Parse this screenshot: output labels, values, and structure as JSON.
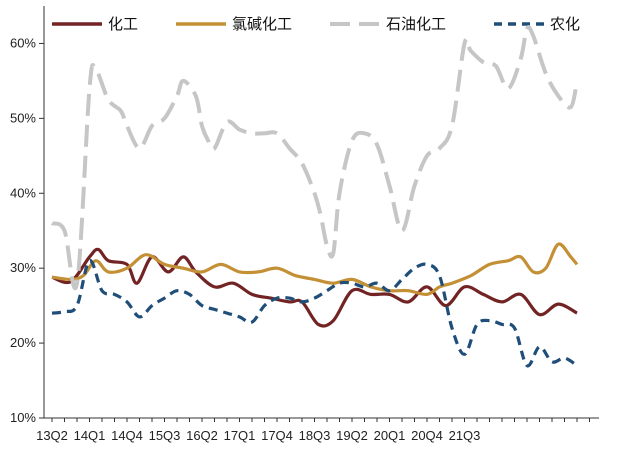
{
  "chart_data": {
    "type": "line",
    "title": "",
    "xlabel": "",
    "ylabel": "",
    "ylim": [
      10,
      65
    ],
    "yticks": [
      10,
      20,
      30,
      40,
      50,
      60
    ],
    "yticks_labels": [
      "10%",
      "20%",
      "30%",
      "40%",
      "50%",
      "60%"
    ],
    "x_start_quarter": "13Q2",
    "xtick_labels": [
      "13Q2",
      "14Q1",
      "14Q4",
      "15Q3",
      "16Q2",
      "17Q1",
      "17Q4",
      "18Q3",
      "19Q2",
      "20Q1",
      "20Q4",
      "21Q3"
    ],
    "grid": false,
    "legend_position": "top",
    "series": [
      {
        "name": "化工",
        "color": "#722424",
        "style": "solid",
        "points": [
          [
            0,
            28.8
          ],
          [
            1.5,
            28.2
          ],
          [
            3,
            31.5
          ],
          [
            3.7,
            32.5
          ],
          [
            4.5,
            31
          ],
          [
            6,
            30.5
          ],
          [
            6.8,
            28
          ],
          [
            8,
            31.5
          ],
          [
            9.3,
            29.5
          ],
          [
            10.5,
            31.5
          ],
          [
            11.5,
            29.5
          ],
          [
            13,
            27.5
          ],
          [
            14.5,
            28
          ],
          [
            16,
            26.5
          ],
          [
            17.5,
            26
          ],
          [
            19,
            25.5
          ],
          [
            20,
            25.5
          ],
          [
            21.3,
            22.5
          ],
          [
            22.5,
            23
          ],
          [
            24,
            27
          ],
          [
            25.5,
            26.5
          ],
          [
            27,
            26.5
          ],
          [
            28.5,
            25.5
          ],
          [
            30,
            27.5
          ],
          [
            31.5,
            25
          ],
          [
            33,
            27.5
          ],
          [
            34.5,
            26.5
          ],
          [
            36,
            25.5
          ],
          [
            37.5,
            26.5
          ],
          [
            39,
            23.8
          ],
          [
            40.5,
            25.2
          ],
          [
            42,
            24
          ]
        ]
      },
      {
        "name": "氯碱化工",
        "color": "#C49035",
        "style": "solid",
        "points": [
          [
            0,
            28.8
          ],
          [
            1.5,
            28.5
          ],
          [
            2.5,
            29
          ],
          [
            3.5,
            31
          ],
          [
            4.5,
            29.5
          ],
          [
            6,
            30
          ],
          [
            7.5,
            31.8
          ],
          [
            9,
            30.5
          ],
          [
            10.5,
            30
          ],
          [
            12,
            29.5
          ],
          [
            13.5,
            30.5
          ],
          [
            15,
            29.5
          ],
          [
            16.5,
            29.5
          ],
          [
            18,
            30
          ],
          [
            19.5,
            29
          ],
          [
            21,
            28.5
          ],
          [
            22.5,
            28
          ],
          [
            24,
            28.5
          ],
          [
            25.5,
            27.5
          ],
          [
            27,
            27
          ],
          [
            28.5,
            27
          ],
          [
            30,
            26.5
          ],
          [
            31,
            27.5
          ],
          [
            32,
            28
          ],
          [
            33.5,
            29
          ],
          [
            35,
            30.5
          ],
          [
            36.5,
            31
          ],
          [
            37.5,
            31.5
          ],
          [
            38.5,
            29.5
          ],
          [
            39.5,
            30
          ],
          [
            40.5,
            33.2
          ],
          [
            41.5,
            31.5
          ],
          [
            42,
            30.5
          ]
        ]
      },
      {
        "name": "石油化工",
        "color": "#C6C6C6",
        "style": "dashed",
        "points": [
          [
            0,
            36
          ],
          [
            1,
            35
          ],
          [
            2,
            28
          ],
          [
            3,
            54
          ],
          [
            3.5,
            56.5
          ],
          [
            4.5,
            52.5
          ],
          [
            5.5,
            51
          ],
          [
            6,
            49
          ],
          [
            7,
            46
          ],
          [
            8,
            49
          ],
          [
            9,
            50
          ],
          [
            10,
            53
          ],
          [
            10.5,
            55
          ],
          [
            11.5,
            53
          ],
          [
            12,
            49
          ],
          [
            12.5,
            47
          ],
          [
            13,
            46
          ],
          [
            14,
            49.5
          ],
          [
            15,
            48.5
          ],
          [
            16,
            48
          ],
          [
            17,
            48
          ],
          [
            18,
            48
          ],
          [
            19,
            46
          ],
          [
            20,
            44
          ],
          [
            21,
            40
          ],
          [
            21.5,
            37
          ],
          [
            22,
            33
          ],
          [
            22.5,
            32
          ],
          [
            23,
            40
          ],
          [
            24,
            47
          ],
          [
            25,
            48
          ],
          [
            26,
            46.5
          ],
          [
            27,
            41
          ],
          [
            28,
            35
          ],
          [
            29,
            41
          ],
          [
            30,
            45
          ],
          [
            31,
            46
          ],
          [
            32,
            49
          ],
          [
            33,
            60
          ],
          [
            33.5,
            59
          ],
          [
            34.5,
            57.5
          ],
          [
            35.5,
            57
          ],
          [
            36.5,
            54
          ],
          [
            37.5,
            58
          ],
          [
            38,
            62
          ],
          [
            38.5,
            61
          ],
          [
            39.5,
            56
          ],
          [
            40.5,
            53
          ],
          [
            41.5,
            51.5
          ],
          [
            42,
            55
          ]
        ]
      },
      {
        "name": "农化",
        "color": "#1F4E79",
        "style": "dashed",
        "points": [
          [
            0,
            24
          ],
          [
            1,
            24.2
          ],
          [
            2,
            25
          ],
          [
            3,
            31
          ],
          [
            4,
            27
          ],
          [
            5,
            26.5
          ],
          [
            6,
            25.5
          ],
          [
            7,
            23.5
          ],
          [
            8,
            25
          ],
          [
            9,
            26
          ],
          [
            10,
            27
          ],
          [
            11,
            26.5
          ],
          [
            12,
            25
          ],
          [
            13,
            24.5
          ],
          [
            14,
            24
          ],
          [
            15,
            23.5
          ],
          [
            16,
            22.8
          ],
          [
            17,
            25
          ],
          [
            18,
            26
          ],
          [
            19,
            26
          ],
          [
            20,
            25.5
          ],
          [
            21,
            26
          ],
          [
            22,
            27
          ],
          [
            23,
            28
          ],
          [
            24,
            28
          ],
          [
            25,
            27.5
          ],
          [
            26,
            28
          ],
          [
            27,
            27
          ],
          [
            28,
            28.5
          ],
          [
            29,
            30
          ],
          [
            30,
            30.5
          ],
          [
            31,
            29
          ],
          [
            32,
            22
          ],
          [
            33,
            18.5
          ],
          [
            34,
            22.5
          ],
          [
            35,
            23
          ],
          [
            36,
            22.5
          ],
          [
            37,
            22
          ],
          [
            38,
            17
          ],
          [
            39,
            19.5
          ],
          [
            40,
            17.5
          ],
          [
            41,
            18
          ],
          [
            42,
            17
          ]
        ]
      }
    ]
  }
}
